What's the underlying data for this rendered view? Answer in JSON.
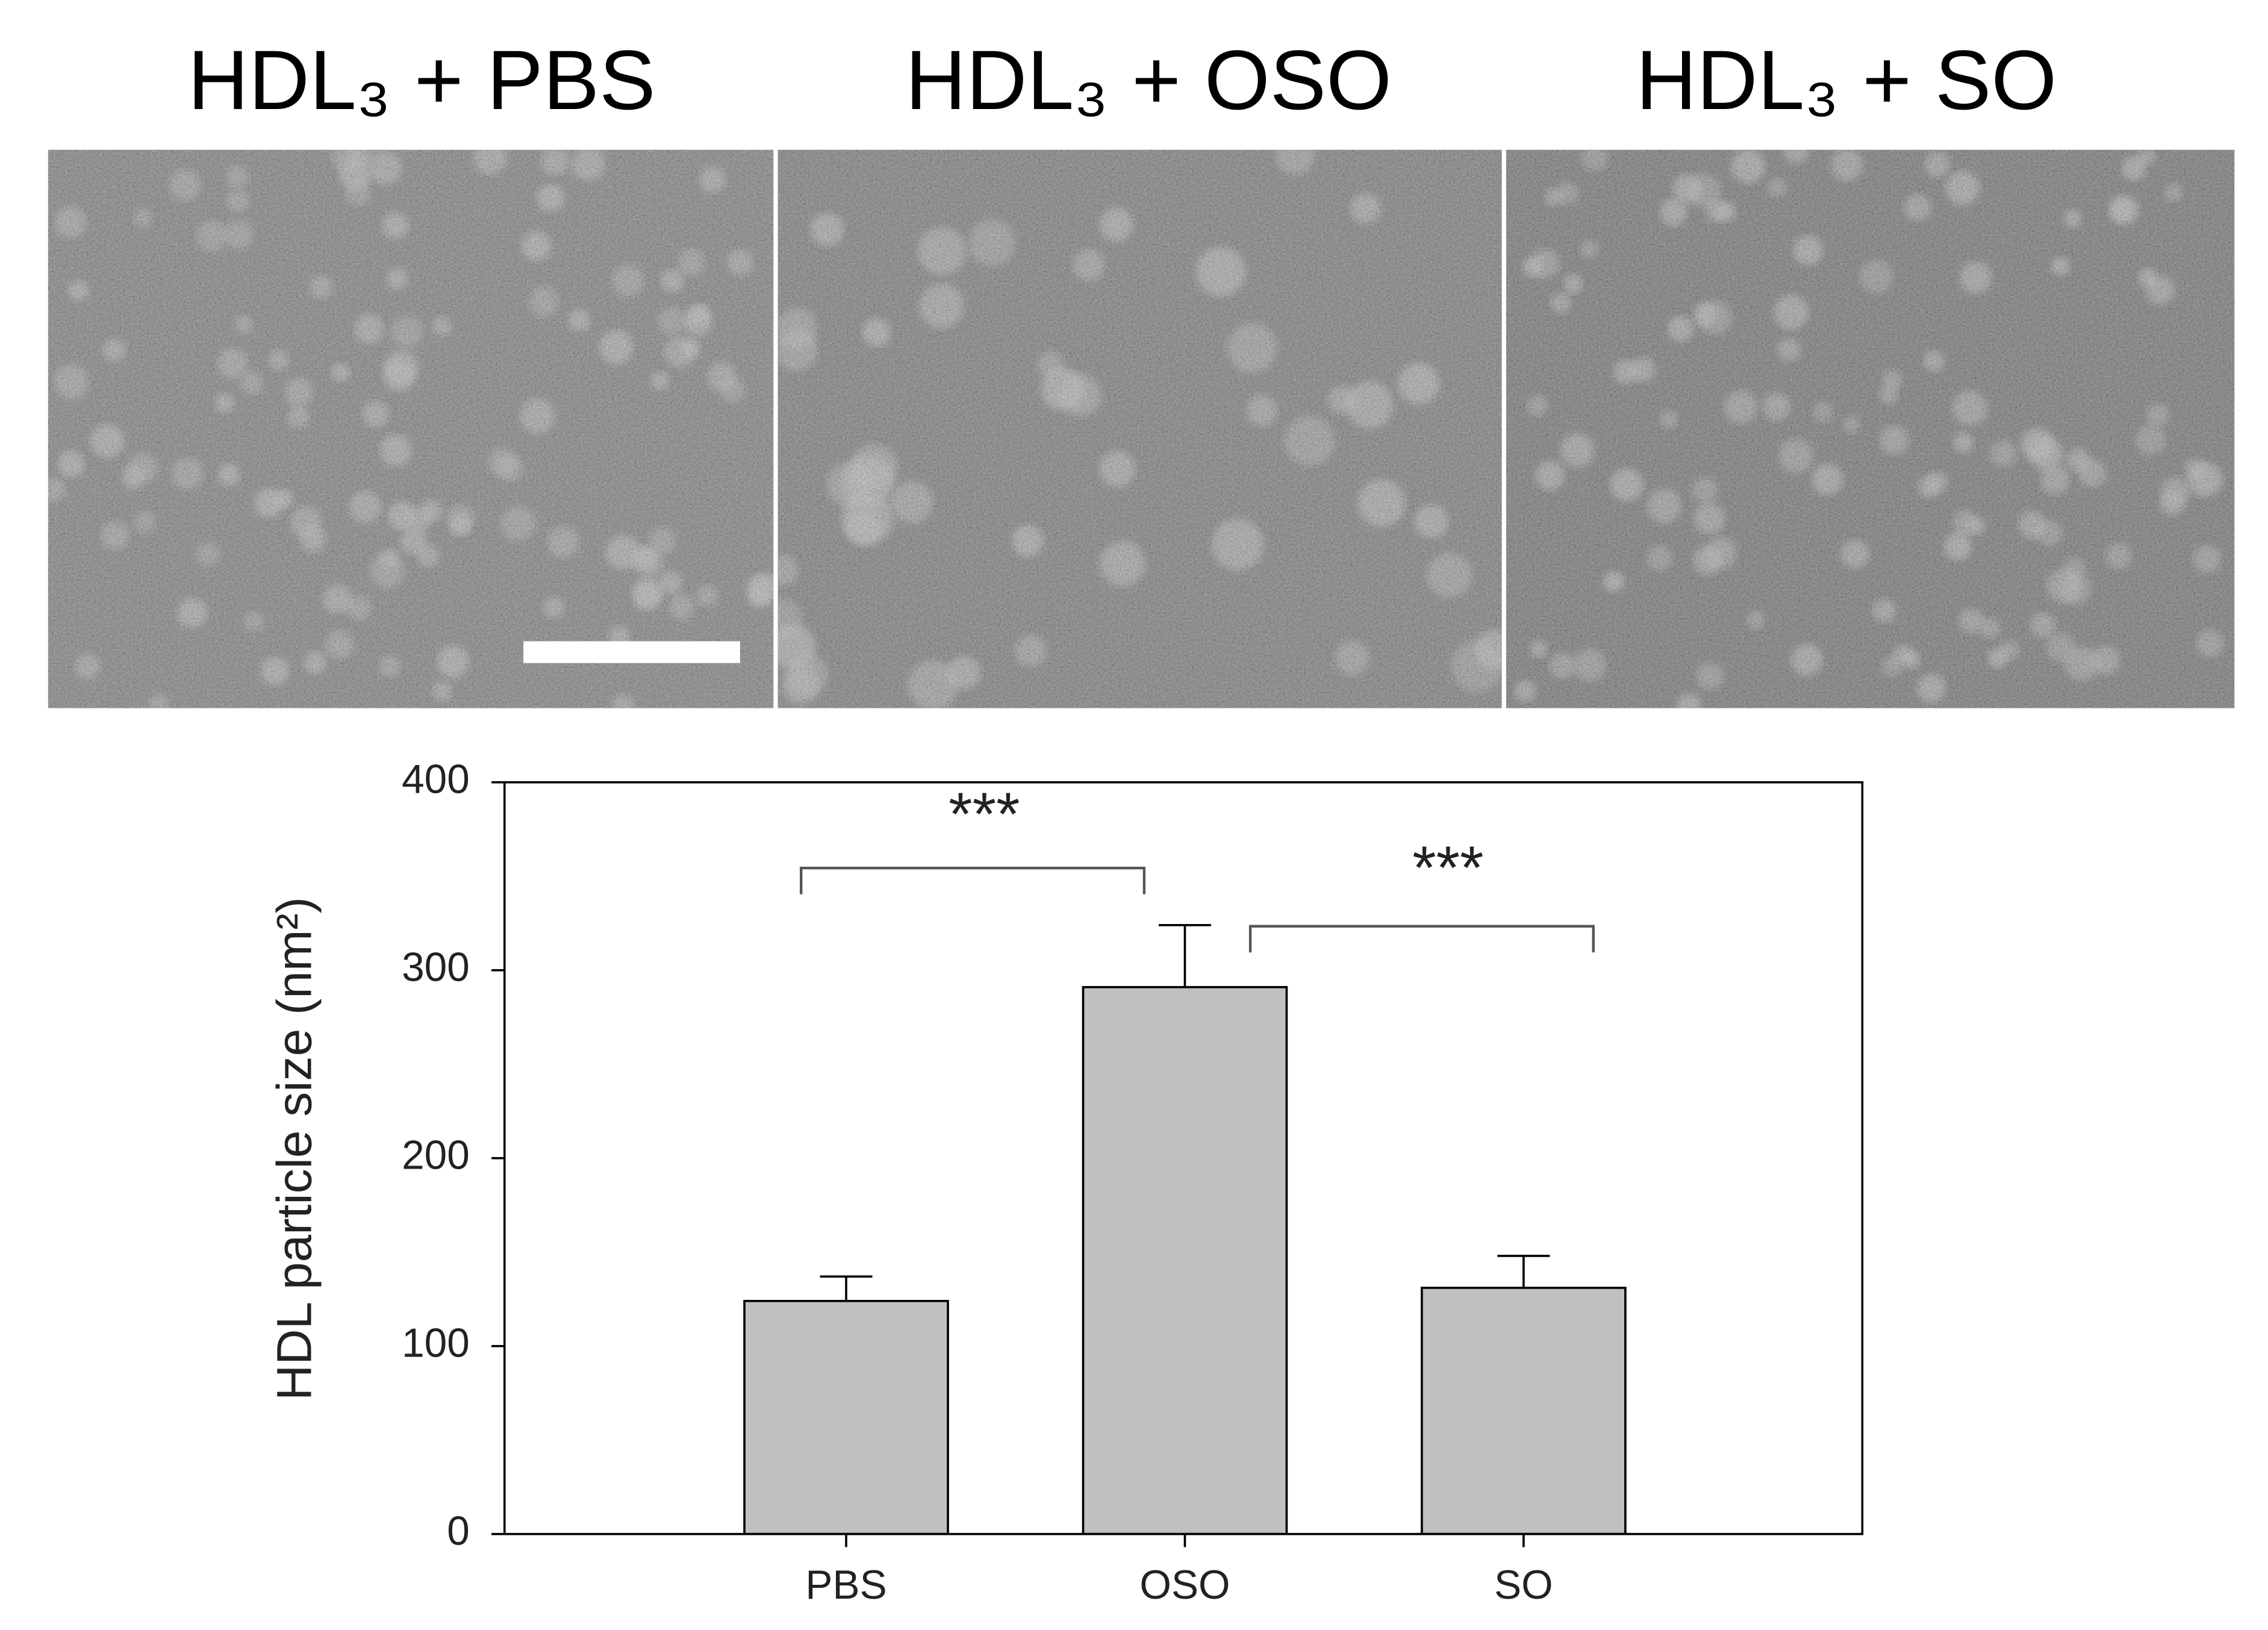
{
  "panels": {
    "titles": [
      "HDL₃  + PBS",
      "HDL₃ + OSO",
      "HDL₃ + SO"
    ]
  },
  "chart_data": {
    "type": "bar",
    "y_label": "HDL particle size (nm²)",
    "categories": [
      "PBS",
      "OSO",
      "SO"
    ],
    "values": [
      124,
      291,
      131
    ],
    "errors": [
      13,
      33,
      17
    ],
    "color": "#c0c0c0",
    "ylim": [
      0,
      400
    ],
    "yticks": [
      0,
      100,
      200,
      300,
      400
    ],
    "annotations": [
      "***",
      "***"
    ]
  }
}
